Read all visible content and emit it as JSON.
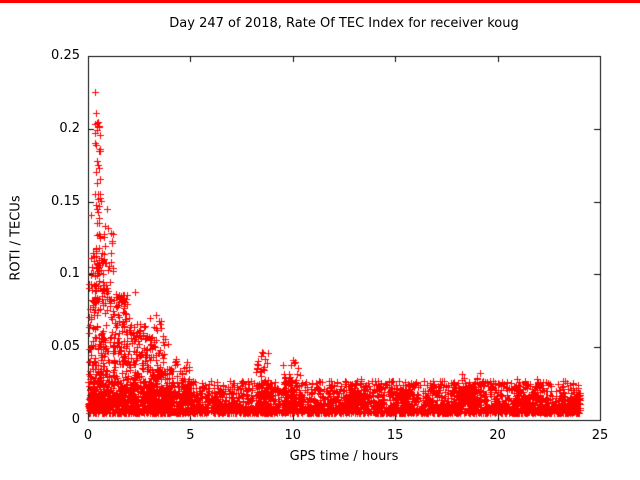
{
  "chart_data": {
    "type": "scatter",
    "title": "Day 247 of 2018, Rate Of TEC Index for receiver koug",
    "xlabel": "GPS time / hours",
    "ylabel": "ROTI / TECUs",
    "xlim": [
      0,
      25
    ],
    "ylim": [
      0,
      0.25
    ],
    "xticks": [
      {
        "v": 0,
        "label": "0"
      },
      {
        "v": 5,
        "label": "5"
      },
      {
        "v": 10,
        "label": "10"
      },
      {
        "v": 15,
        "label": "15"
      },
      {
        "v": 20,
        "label": "20"
      },
      {
        "v": 25,
        "label": "25"
      }
    ],
    "yticks": [
      {
        "v": 0,
        "label": "0"
      },
      {
        "v": 0.05,
        "label": "0.05"
      },
      {
        "v": 0.1,
        "label": "0.1"
      },
      {
        "v": 0.15,
        "label": "0.15"
      },
      {
        "v": 0.2,
        "label": "0.2"
      },
      {
        "v": 0.25,
        "label": "0.25"
      }
    ],
    "grid": false,
    "legend": null,
    "marker": "plus",
    "marker_color": "#ff0000",
    "axis_color": "#000000",
    "background_color": "#ffffff",
    "top_strip_color": "#ff0000",
    "point_generator": {
      "seed": 1337,
      "baseline": {
        "x0": 0.0,
        "x1": 24.05,
        "n": 3200,
        "ymin": 0.005,
        "ymax": 0.027,
        "pow": 2.1
      },
      "bursts": [
        {
          "x0": 0.02,
          "x1": 0.75,
          "n": 200,
          "ymin": 0.01,
          "ymax": 0.115,
          "pow": 1.6
        },
        {
          "x0": 0.3,
          "x1": 0.62,
          "n": 40,
          "ymin": 0.09,
          "ymax": 0.205,
          "pow": 1.2
        },
        {
          "x0": 0.7,
          "x1": 1.25,
          "n": 130,
          "ymin": 0.01,
          "ymax": 0.14,
          "pow": 2.0
        },
        {
          "x0": 1.2,
          "x1": 2.0,
          "n": 170,
          "ymin": 0.012,
          "ymax": 0.088,
          "pow": 1.8
        },
        {
          "x0": 2.0,
          "x1": 3.0,
          "n": 150,
          "ymin": 0.012,
          "ymax": 0.068,
          "pow": 1.8
        },
        {
          "x0": 3.0,
          "x1": 3.8,
          "n": 130,
          "ymin": 0.012,
          "ymax": 0.072,
          "pow": 2.0
        },
        {
          "x0": 3.8,
          "x1": 5.0,
          "n": 110,
          "ymin": 0.01,
          "ymax": 0.042,
          "pow": 1.8
        },
        {
          "x0": 8.2,
          "x1": 8.8,
          "n": 45,
          "ymin": 0.012,
          "ymax": 0.046,
          "pow": 1.6
        },
        {
          "x0": 9.5,
          "x1": 10.5,
          "n": 60,
          "ymin": 0.012,
          "ymax": 0.04,
          "pow": 1.8
        },
        {
          "x0": 12.8,
          "x1": 13.5,
          "n": 25,
          "ymin": 0.01,
          "ymax": 0.028,
          "pow": 1.5
        },
        {
          "x0": 15.0,
          "x1": 16.0,
          "n": 30,
          "ymin": 0.01,
          "ymax": 0.026,
          "pow": 1.8
        },
        {
          "x0": 18.2,
          "x1": 19.4,
          "n": 55,
          "ymin": 0.012,
          "ymax": 0.032,
          "pow": 1.6
        },
        {
          "x0": 20.7,
          "x1": 22.4,
          "n": 70,
          "ymin": 0.01,
          "ymax": 0.03,
          "pow": 1.8
        },
        {
          "x0": 23.0,
          "x1": 24.0,
          "n": 40,
          "ymin": 0.008,
          "ymax": 0.024,
          "pow": 1.8
        }
      ]
    },
    "outliers": [
      [
        0.35,
        0.225
      ],
      [
        0.38,
        0.211
      ],
      [
        0.42,
        0.199
      ],
      [
        0.36,
        0.19
      ],
      [
        0.44,
        0.178
      ],
      [
        0.4,
        0.17
      ],
      [
        0.46,
        0.163
      ],
      [
        0.33,
        0.155
      ],
      [
        0.41,
        0.148
      ],
      [
        0.47,
        0.143
      ],
      [
        0.13,
        0.141
      ],
      [
        0.55,
        0.139
      ],
      [
        0.92,
        0.145
      ],
      [
        0.97,
        0.132
      ],
      [
        1.22,
        0.128
      ],
      [
        0.6,
        0.125
      ],
      [
        0.52,
        0.118
      ],
      [
        0.68,
        0.115
      ],
      [
        0.3,
        0.112
      ],
      [
        0.85,
        0.108
      ],
      [
        0.18,
        0.105
      ],
      [
        0.25,
        0.101
      ],
      [
        0.75,
        0.1
      ],
      [
        1.05,
        0.095
      ],
      [
        1.5,
        0.085
      ],
      [
        1.62,
        0.082
      ],
      [
        1.75,
        0.078
      ],
      [
        2.3,
        0.088
      ],
      [
        3.3,
        0.072
      ],
      [
        3.45,
        0.068
      ],
      [
        2.1,
        0.065
      ],
      [
        2.55,
        0.06
      ],
      [
        3.9,
        0.052
      ],
      [
        8.5,
        0.047
      ],
      [
        8.45,
        0.044
      ],
      [
        10.0,
        0.041
      ],
      [
        9.9,
        0.038
      ]
    ]
  }
}
